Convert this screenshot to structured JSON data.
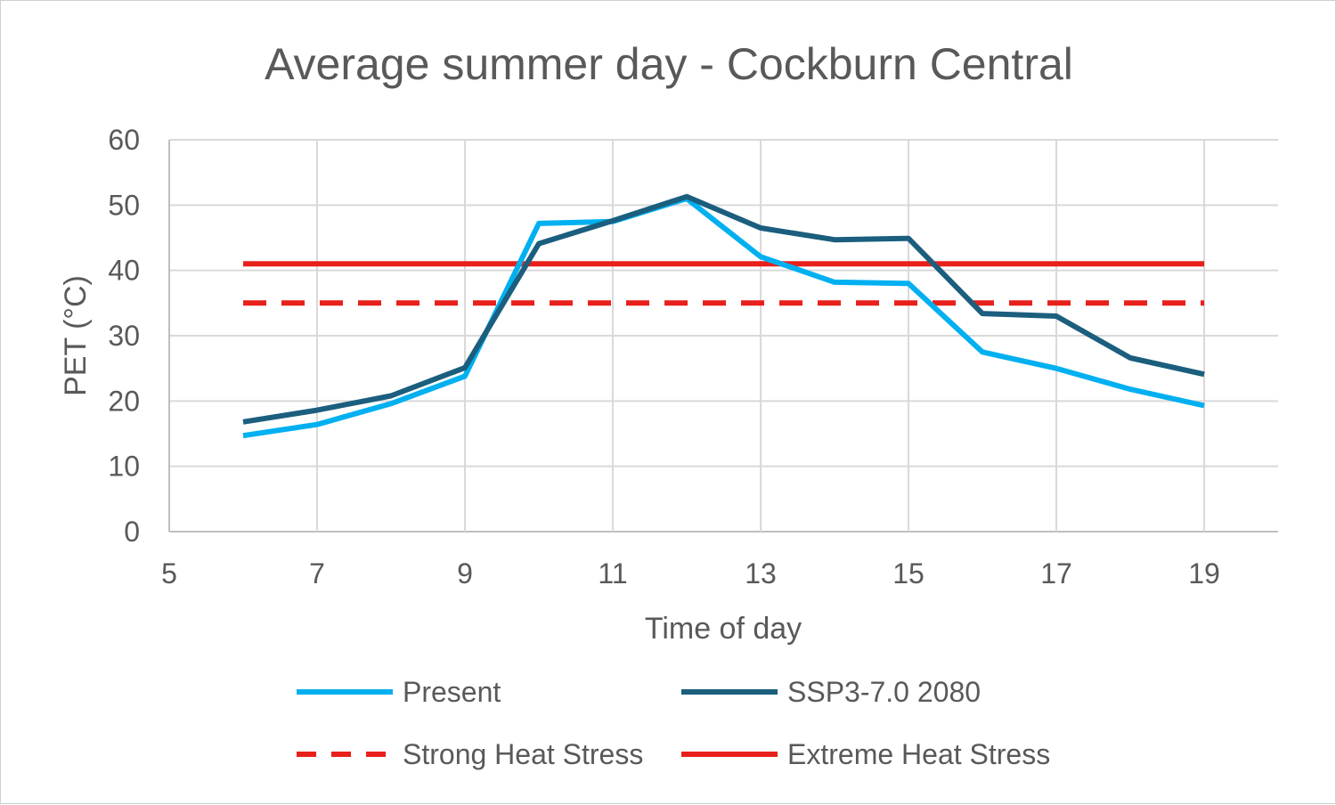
{
  "chart_data": {
    "type": "line",
    "title": "Average summer day - Cockburn Central",
    "xlabel": "Time of day",
    "ylabel": "PET (°C)",
    "xlim": [
      5,
      20
    ],
    "ylim": [
      0,
      60
    ],
    "xticks": [
      5,
      7,
      9,
      11,
      13,
      15,
      17,
      19
    ],
    "yticks": [
      0,
      10,
      20,
      30,
      40,
      50,
      60
    ],
    "grid": true,
    "legend_position": "bottom",
    "series": [
      {
        "name": "Present",
        "color": "#00B0F0",
        "dash": "solid",
        "x": [
          6,
          7,
          8,
          9,
          10,
          11,
          12,
          13,
          14,
          15,
          16,
          17,
          18,
          19
        ],
        "y": [
          14.7,
          16.4,
          19.6,
          23.8,
          47.2,
          47.5,
          51.0,
          42.1,
          38.2,
          38.0,
          27.5,
          25.0,
          21.8,
          19.3
        ]
      },
      {
        "name": "SSP3-7.0 2080",
        "color": "#1B5E7E",
        "dash": "solid",
        "x": [
          6,
          7,
          8,
          9,
          10,
          11,
          12,
          13,
          14,
          15,
          16,
          17,
          18,
          19
        ],
        "y": [
          16.8,
          18.6,
          20.8,
          25.1,
          44.1,
          47.6,
          51.3,
          46.5,
          44.7,
          44.9,
          33.4,
          33.0,
          26.6,
          24.1
        ]
      },
      {
        "name": "Strong Heat Stress",
        "color": "#E8201B",
        "dash": "dashed",
        "x": [
          6,
          19
        ],
        "y": [
          35,
          35
        ]
      },
      {
        "name": "Extreme Heat Stress",
        "color": "#E8201B",
        "dash": "solid",
        "x": [
          6,
          19
        ],
        "y": [
          41,
          41
        ]
      }
    ]
  }
}
